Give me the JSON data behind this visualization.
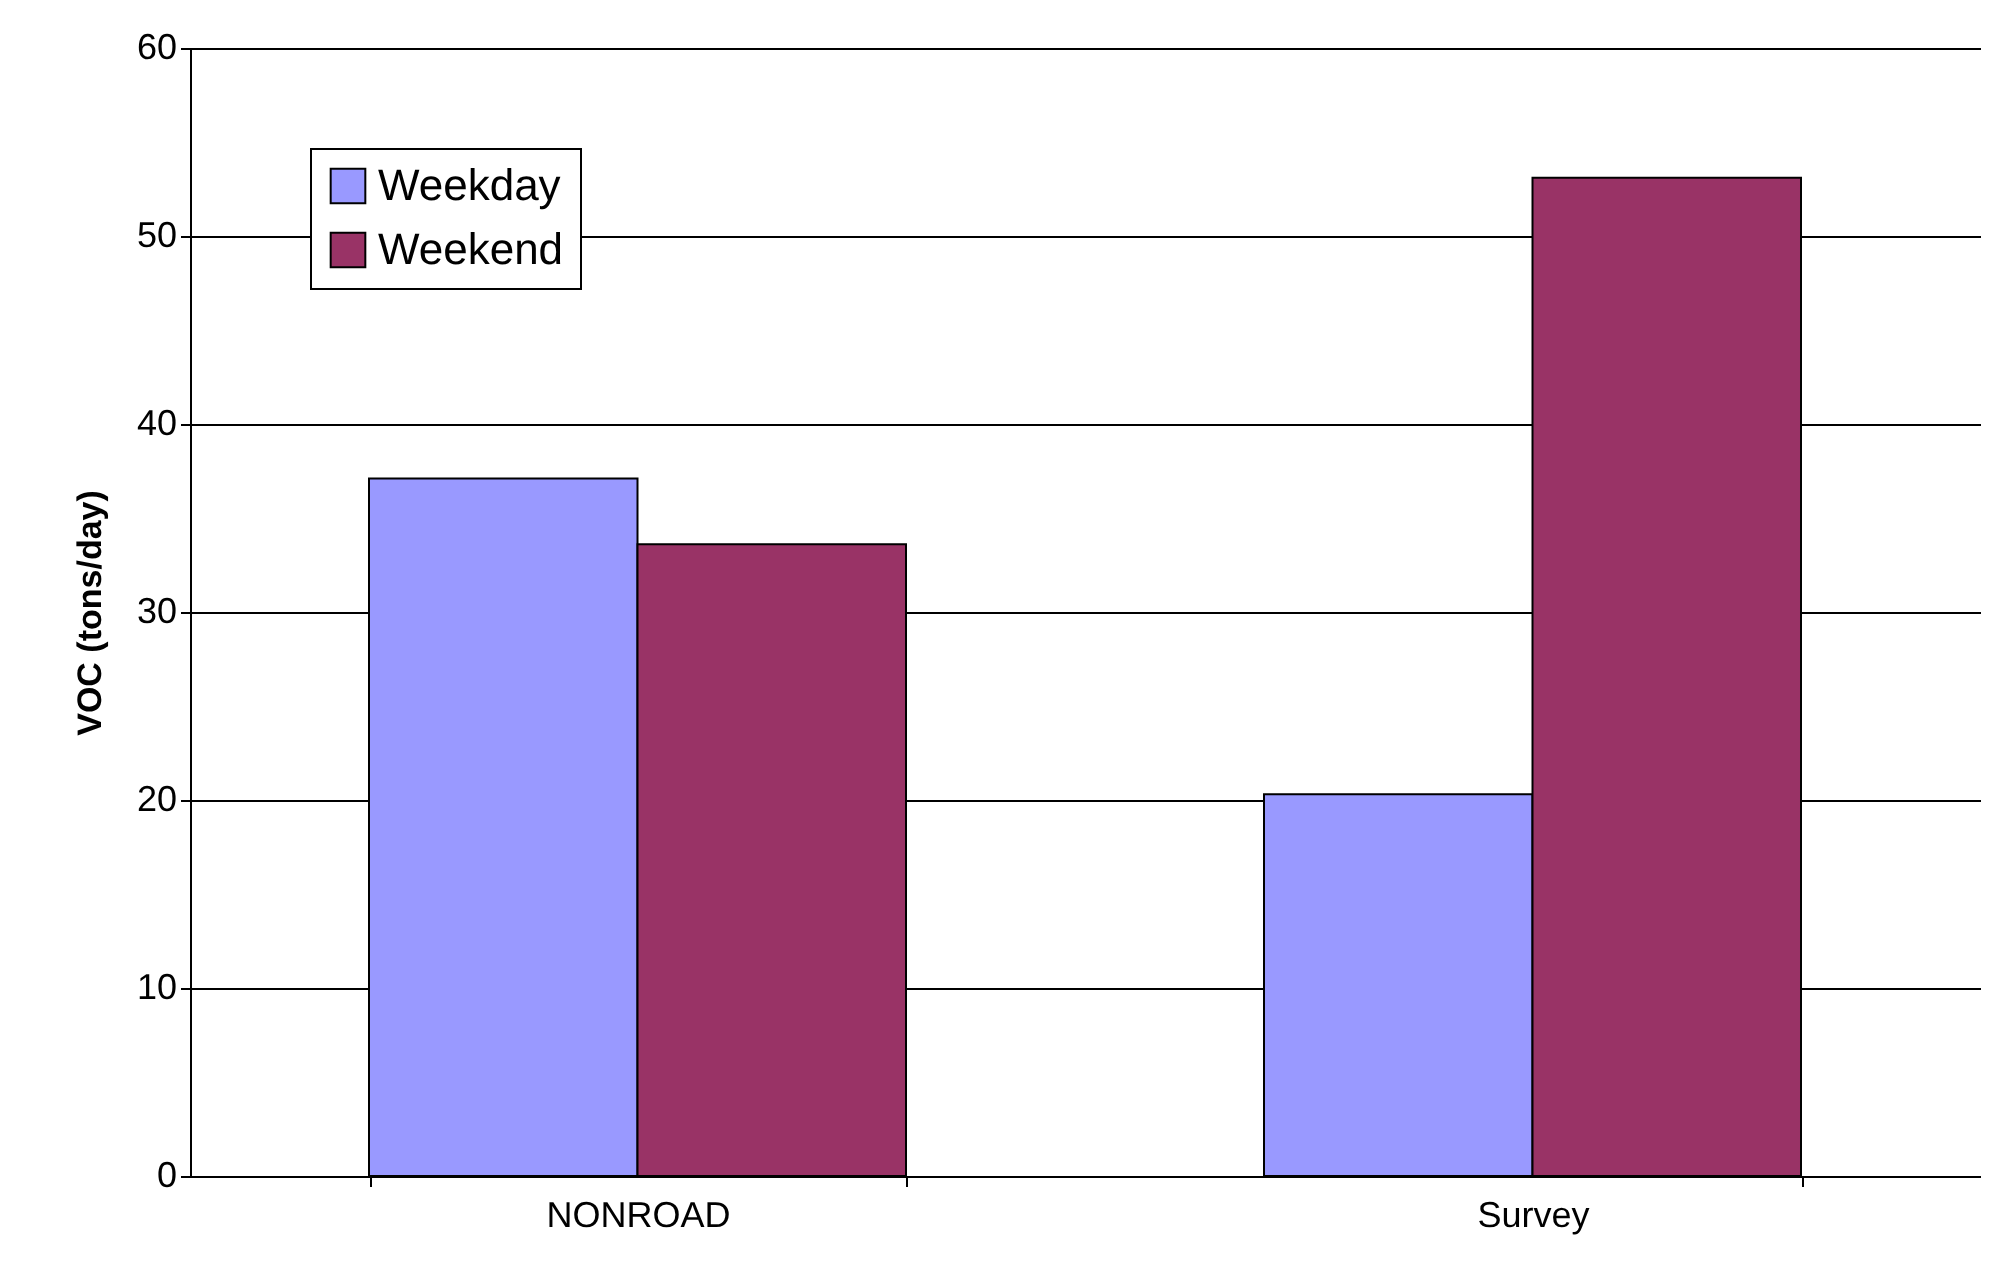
{
  "chart_data": {
    "type": "bar",
    "ylabel": "VOC (tons/day)",
    "categories": [
      "NONROAD",
      "Survey"
    ],
    "series": [
      {
        "name": "Weekday",
        "color": "#9999ff",
        "values": [
          37.1,
          20.3
        ]
      },
      {
        "name": "Weekend",
        "color": "#993366",
        "values": [
          33.6,
          53.1
        ]
      }
    ],
    "ylim": [
      0,
      60
    ],
    "yticks": [
      0,
      10,
      20,
      30,
      40,
      50,
      60
    ],
    "grid": "y",
    "legend": "top left"
  }
}
